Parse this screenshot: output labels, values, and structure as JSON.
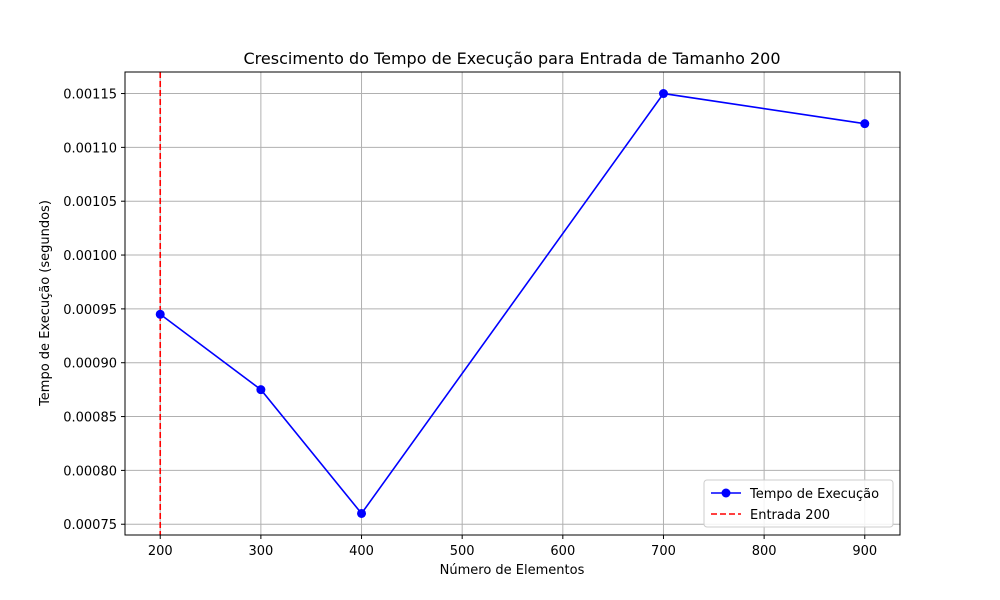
{
  "chart_data": {
    "type": "line",
    "title": "Crescimento do Tempo de Execução para Entrada de Tamanho 200",
    "xlabel": "Número de Elementos",
    "ylabel": "Tempo de Execução (segundos)",
    "xlim": [
      165,
      935
    ],
    "ylim": [
      0.00074,
      0.00117
    ],
    "xticks": [
      200,
      300,
      400,
      500,
      600,
      700,
      800,
      900
    ],
    "yticks": [
      0.00075,
      0.0008,
      0.00085,
      0.0009,
      0.00095,
      0.001,
      0.00105,
      0.0011,
      0.00115
    ],
    "ytick_labels": [
      "0.00075",
      "0.00080",
      "0.00085",
      "0.00090",
      "0.00095",
      "0.00100",
      "0.00105",
      "0.00110",
      "0.00115"
    ],
    "grid": true,
    "legend_position": "lower-right",
    "series": [
      {
        "name": "Tempo de Execução",
        "color": "#0000ff",
        "marker": "circle",
        "x": [
          200,
          300,
          400,
          700,
          900
        ],
        "y": [
          0.000945,
          0.000875,
          0.00076,
          0.00115,
          0.001122
        ]
      }
    ],
    "reference_lines": [
      {
        "name": "Entrada 200",
        "orientation": "vertical",
        "x": 200,
        "color": "#ff0000",
        "style": "dashed"
      }
    ]
  }
}
